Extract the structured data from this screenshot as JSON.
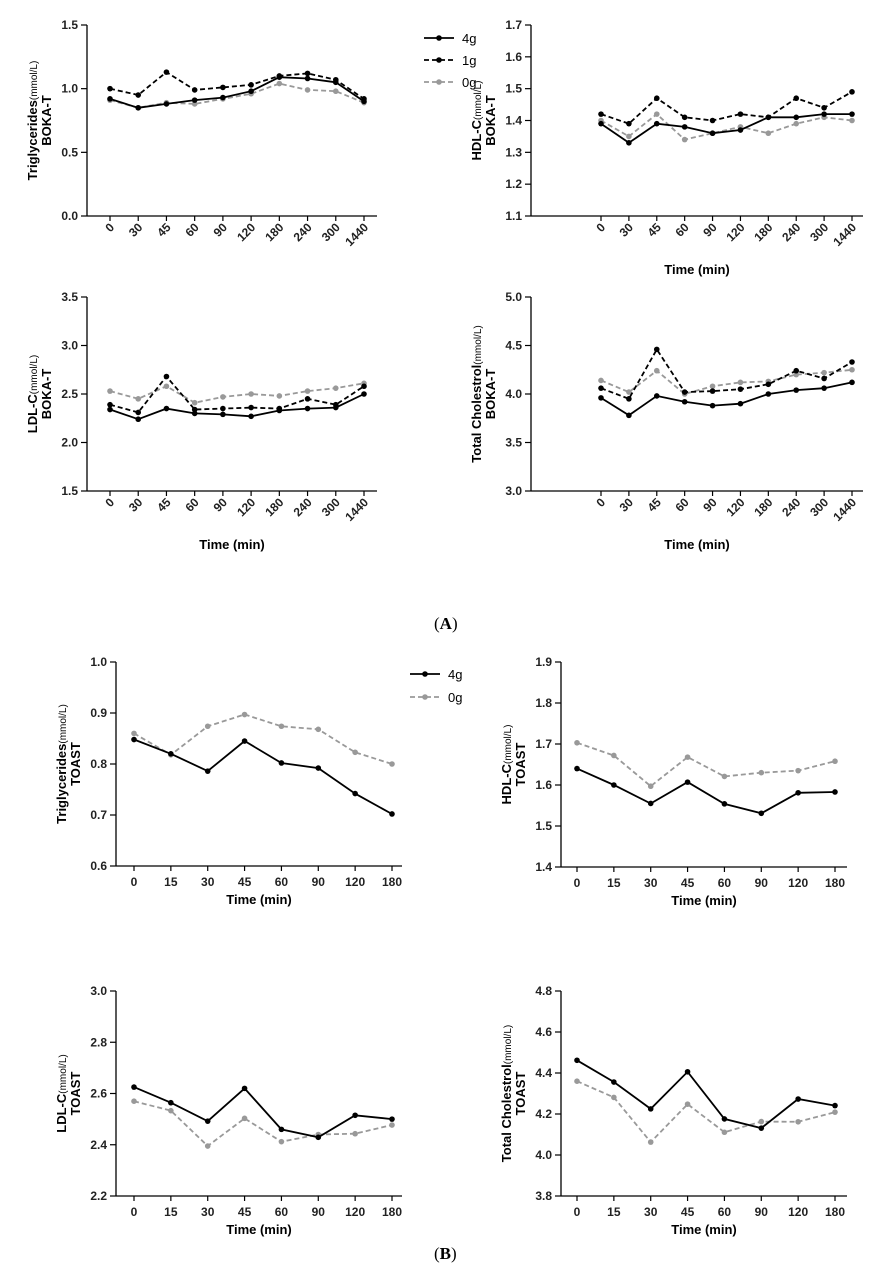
{
  "panel_labels": {
    "A": {
      "open": "(",
      "letter": "A",
      "close": ")"
    },
    "B": {
      "open": "(",
      "letter": "B",
      "close": ")"
    }
  },
  "chart_data": [
    {
      "id": "a-tg",
      "group": "A",
      "type": "line",
      "ylabel_main": "Triglycerides",
      "ylabel_unit": "(mmol/L)",
      "ylabel_sub": "BOKA-T",
      "xlabel": "",
      "categories": [
        "0",
        "30",
        "45",
        "60",
        "90",
        "120",
        "180",
        "240",
        "300",
        "1440"
      ],
      "ylim": [
        0.0,
        1.5
      ],
      "yticks": [
        "0.0",
        "0.5",
        "1.0",
        "1.5"
      ],
      "rotate_x": true,
      "series": [
        {
          "name": "4g",
          "style": "solid",
          "color": "#000000",
          "values": [
            0.92,
            0.85,
            0.88,
            0.91,
            0.93,
            0.98,
            1.09,
            1.08,
            1.05,
            0.9
          ]
        },
        {
          "name": "1g",
          "style": "dashed",
          "color": "#000000",
          "values": [
            1.0,
            0.95,
            1.13,
            0.99,
            1.01,
            1.03,
            1.1,
            1.12,
            1.07,
            0.92
          ]
        },
        {
          "name": "0g",
          "style": "dashed",
          "color": "#999999",
          "values": [
            0.91,
            0.85,
            0.89,
            0.88,
            0.92,
            0.96,
            1.04,
            0.99,
            0.98,
            0.89
          ]
        }
      ]
    },
    {
      "id": "a-hdl",
      "group": "A",
      "type": "line",
      "ylabel_main": "HDL-C",
      "ylabel_unit": "(mmol/L)",
      "ylabel_sub": "BOKA-T",
      "xlabel": "Time (min)",
      "categories": [
        "0",
        "30",
        "45",
        "60",
        "90",
        "120",
        "180",
        "240",
        "300",
        "1440"
      ],
      "ylim": [
        1.1,
        1.7
      ],
      "yticks": [
        "1.1",
        "1.2",
        "1.3",
        "1.4",
        "1.5",
        "1.6",
        "1.7"
      ],
      "rotate_x": true,
      "series": [
        {
          "name": "4g",
          "style": "solid",
          "color": "#000000",
          "values": [
            1.39,
            1.33,
            1.39,
            1.38,
            1.36,
            1.37,
            1.41,
            1.41,
            1.42,
            1.42
          ]
        },
        {
          "name": "1g",
          "style": "dashed",
          "color": "#000000",
          "values": [
            1.42,
            1.39,
            1.47,
            1.41,
            1.4,
            1.42,
            1.41,
            1.47,
            1.44,
            1.49
          ]
        },
        {
          "name": "0g",
          "style": "dashed",
          "color": "#999999",
          "values": [
            1.4,
            1.35,
            1.42,
            1.34,
            1.36,
            1.38,
            1.36,
            1.39,
            1.41,
            1.4
          ]
        }
      ]
    },
    {
      "id": "a-ldl",
      "group": "A",
      "type": "line",
      "ylabel_main": "LDL-C",
      "ylabel_unit": "(mmol/L)",
      "ylabel_sub": "BOKA-T",
      "xlabel": "Time (min)",
      "categories": [
        "0",
        "30",
        "45",
        "60",
        "90",
        "120",
        "180",
        "240",
        "300",
        "1440"
      ],
      "ylim": [
        1.5,
        3.5
      ],
      "yticks": [
        "1.5",
        "2.0",
        "2.5",
        "3.0",
        "3.5"
      ],
      "rotate_x": true,
      "series": [
        {
          "name": "4g",
          "style": "solid",
          "color": "#000000",
          "values": [
            2.34,
            2.24,
            2.35,
            2.3,
            2.29,
            2.27,
            2.33,
            2.35,
            2.36,
            2.5
          ]
        },
        {
          "name": "1g",
          "style": "dashed",
          "color": "#000000",
          "values": [
            2.39,
            2.31,
            2.68,
            2.34,
            2.35,
            2.36,
            2.35,
            2.45,
            2.39,
            2.58
          ]
        },
        {
          "name": "0g",
          "style": "dashed",
          "color": "#999999",
          "values": [
            2.53,
            2.45,
            2.58,
            2.41,
            2.47,
            2.5,
            2.48,
            2.53,
            2.56,
            2.61
          ]
        }
      ]
    },
    {
      "id": "a-tc",
      "group": "A",
      "type": "line",
      "ylabel_main": "Total Cholestrol",
      "ylabel_unit": "(mmol/L)",
      "ylabel_sub": "BOKA-T",
      "xlabel": "Time (min)",
      "categories": [
        "0",
        "30",
        "45",
        "60",
        "90",
        "120",
        "180",
        "240",
        "300",
        "1440"
      ],
      "ylim": [
        3.0,
        5.0
      ],
      "yticks": [
        "3.0",
        "3.5",
        "4.0",
        "4.5",
        "5.0"
      ],
      "rotate_x": true,
      "series": [
        {
          "name": "4g",
          "style": "solid",
          "color": "#000000",
          "values": [
            3.96,
            3.78,
            3.98,
            3.92,
            3.88,
            3.9,
            4.0,
            4.04,
            4.06,
            4.12
          ]
        },
        {
          "name": "1g",
          "style": "dashed",
          "color": "#000000",
          "values": [
            4.06,
            3.95,
            4.46,
            4.02,
            4.03,
            4.05,
            4.1,
            4.24,
            4.16,
            4.33
          ]
        },
        {
          "name": "0g",
          "style": "dashed",
          "color": "#999999",
          "values": [
            4.14,
            4.02,
            4.24,
            4.0,
            4.08,
            4.12,
            4.13,
            4.2,
            4.22,
            4.25
          ]
        }
      ]
    },
    {
      "id": "b-tg",
      "group": "B",
      "type": "line",
      "ylabel_main": "Triglycerides",
      "ylabel_unit": "(mmol/L)",
      "ylabel_sub": "TOAST",
      "xlabel": "Time (min)",
      "categories": [
        "0",
        "15",
        "30",
        "45",
        "60",
        "90",
        "120",
        "180"
      ],
      "ylim": [
        0.6,
        1.0
      ],
      "yticks": [
        "0.6",
        "0.7",
        "0.8",
        "0.9",
        "1.0"
      ],
      "rotate_x": false,
      "series": [
        {
          "name": "4g",
          "style": "solid",
          "color": "#000000",
          "values": [
            0.848,
            0.82,
            0.786,
            0.845,
            0.802,
            0.792,
            0.742,
            0.702
          ]
        },
        {
          "name": "0g",
          "style": "dashed",
          "color": "#999999",
          "values": [
            0.86,
            0.818,
            0.874,
            0.897,
            0.874,
            0.868,
            0.823,
            0.8
          ]
        }
      ]
    },
    {
      "id": "b-hdl",
      "group": "B",
      "type": "line",
      "ylabel_main": "HDL-C",
      "ylabel_unit": "(mmol/L)",
      "ylabel_sub": "TOAST",
      "xlabel": "Time (min)",
      "categories": [
        "0",
        "15",
        "30",
        "45",
        "60",
        "90",
        "120",
        "180"
      ],
      "ylim": [
        1.4,
        1.9
      ],
      "yticks": [
        "1.4",
        "1.5",
        "1.6",
        "1.7",
        "1.8",
        "1.9"
      ],
      "rotate_x": false,
      "series": [
        {
          "name": "4g",
          "style": "solid",
          "color": "#000000",
          "values": [
            1.64,
            1.6,
            1.555,
            1.607,
            1.554,
            1.531,
            1.581,
            1.583
          ]
        },
        {
          "name": "0g",
          "style": "dashed",
          "color": "#999999",
          "values": [
            1.703,
            1.672,
            1.597,
            1.668,
            1.621,
            1.63,
            1.635,
            1.658
          ]
        }
      ]
    },
    {
      "id": "b-ldl",
      "group": "B",
      "type": "line",
      "ylabel_main": "LDL-C",
      "ylabel_unit": "(mmol/L)",
      "ylabel_sub": "TOAST",
      "xlabel": "Time (min)",
      "categories": [
        "0",
        "15",
        "30",
        "45",
        "60",
        "90",
        "120",
        "180"
      ],
      "ylim": [
        2.2,
        3.0
      ],
      "yticks": [
        "2.2",
        "2.4",
        "2.6",
        "2.8",
        "3.0"
      ],
      "rotate_x": false,
      "series": [
        {
          "name": "4g",
          "style": "solid",
          "color": "#000000",
          "values": [
            2.625,
            2.564,
            2.492,
            2.62,
            2.46,
            2.429,
            2.515,
            2.5
          ]
        },
        {
          "name": "0g",
          "style": "dashed",
          "color": "#999999",
          "values": [
            2.57,
            2.533,
            2.395,
            2.503,
            2.412,
            2.44,
            2.443,
            2.477
          ]
        }
      ]
    },
    {
      "id": "b-tc",
      "group": "B",
      "type": "line",
      "ylabel_main": "Total Cholestrol",
      "ylabel_unit": "(mmol/L)",
      "ylabel_sub": "TOAST",
      "xlabel": "Time (min)",
      "categories": [
        "0",
        "15",
        "30",
        "45",
        "60",
        "90",
        "120",
        "180"
      ],
      "ylim": [
        3.8,
        4.8
      ],
      "yticks": [
        "3.8",
        "4.0",
        "4.2",
        "4.4",
        "4.6",
        "4.8"
      ],
      "rotate_x": false,
      "series": [
        {
          "name": "4g",
          "style": "solid",
          "color": "#000000",
          "values": [
            4.462,
            4.356,
            4.225,
            4.406,
            4.176,
            4.131,
            4.273,
            4.241
          ]
        },
        {
          "name": "0g",
          "style": "dashed",
          "color": "#999999",
          "values": [
            4.36,
            4.281,
            4.063,
            4.248,
            4.111,
            4.163,
            4.162,
            4.209
          ]
        }
      ]
    }
  ],
  "legends": {
    "A": [
      {
        "label": "4g",
        "style": "solid",
        "color": "#000000"
      },
      {
        "label": "1g",
        "style": "dashed",
        "color": "#000000"
      },
      {
        "label": "0g",
        "style": "dashed",
        "color": "#999999"
      }
    ],
    "B": [
      {
        "label": "4g",
        "style": "solid",
        "color": "#000000"
      },
      {
        "label": "0g",
        "style": "dashed",
        "color": "#999999"
      }
    ]
  }
}
